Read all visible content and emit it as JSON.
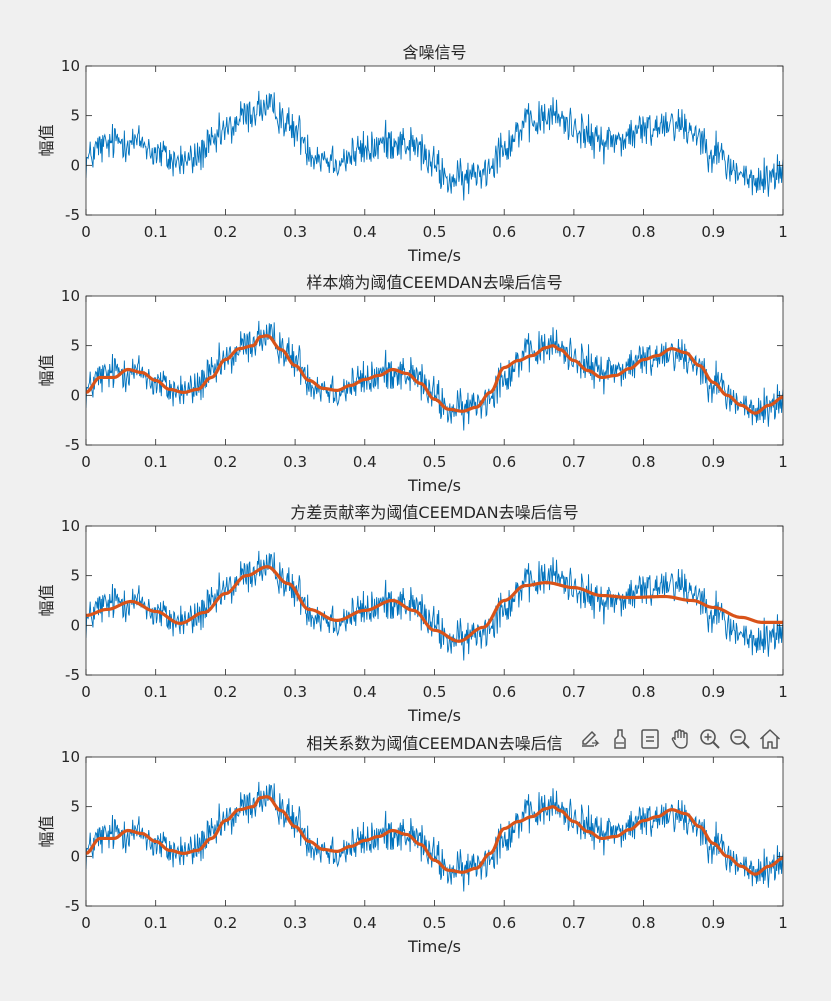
{
  "figure": {
    "background": "#f0f0f0",
    "axes_background": "#ffffff",
    "noisy_color": "#0072bd",
    "denoised_color": "#d95319"
  },
  "toolbar": {
    "icons": [
      "export-icon",
      "brush-icon",
      "data-tip-icon",
      "pan-hand-icon",
      "zoom-in-icon",
      "zoom-out-icon",
      "home-icon"
    ]
  },
  "chart_data": [
    {
      "type": "line",
      "title": "含噪信号",
      "xlabel": "Time/s",
      "ylabel": "幅值",
      "xlim": [
        0,
        1
      ],
      "ylim": [
        -5,
        10
      ],
      "xticks": [
        "0",
        "0.1",
        "0.2",
        "0.3",
        "0.4",
        "0.5",
        "0.6",
        "0.7",
        "0.8",
        "0.9",
        "1"
      ],
      "yticks": [
        "-5",
        "0",
        "5",
        "10"
      ],
      "grid": false,
      "series": [
        {
          "role": "noisy",
          "noise_amplitude": 1.0,
          "x": [
            0,
            0.02,
            0.05,
            0.08,
            0.1,
            0.13,
            0.15,
            0.18,
            0.2,
            0.23,
            0.25,
            0.27,
            0.3,
            0.33,
            0.36,
            0.4,
            0.44,
            0.47,
            0.5,
            0.52,
            0.54,
            0.57,
            0.6,
            0.63,
            0.67,
            0.7,
            0.73,
            0.76,
            0.8,
            0.84,
            0.87,
            0.9,
            0.93,
            0.96,
            0.98,
            1.0
          ],
          "y": [
            0.5,
            1.8,
            2.5,
            2.3,
            1.2,
            0.4,
            0.5,
            2.0,
            3.5,
            5.0,
            5.8,
            5.5,
            3.5,
            1.0,
            0.5,
            1.5,
            2.5,
            2.0,
            0,
            -1.5,
            -1.5,
            -0.5,
            2.0,
            4.0,
            5.0,
            4.0,
            2.5,
            2.5,
            3.5,
            4.5,
            3.5,
            1.5,
            -0.5,
            -1.8,
            -1.2,
            -0.5
          ]
        }
      ]
    },
    {
      "type": "line",
      "title": "样本熵为阈值CEEMDAN去噪后信号",
      "xlabel": "Time/s",
      "ylabel": "幅值",
      "xlim": [
        0,
        1
      ],
      "ylim": [
        -5,
        10
      ],
      "xticks": [
        "0",
        "0.1",
        "0.2",
        "0.3",
        "0.4",
        "0.5",
        "0.6",
        "0.7",
        "0.8",
        "0.9",
        "1"
      ],
      "yticks": [
        "-5",
        "0",
        "5",
        "10"
      ],
      "grid": false,
      "series": [
        {
          "role": "noisy",
          "noise_amplitude": 1.0,
          "x": [
            0,
            0.02,
            0.05,
            0.08,
            0.1,
            0.13,
            0.15,
            0.18,
            0.2,
            0.23,
            0.25,
            0.27,
            0.3,
            0.33,
            0.36,
            0.4,
            0.44,
            0.47,
            0.5,
            0.52,
            0.54,
            0.57,
            0.6,
            0.63,
            0.67,
            0.7,
            0.73,
            0.76,
            0.8,
            0.84,
            0.87,
            0.9,
            0.93,
            0.96,
            0.98,
            1.0
          ],
          "y": [
            0.5,
            1.8,
            2.5,
            2.3,
            1.2,
            0.4,
            0.5,
            2.0,
            3.5,
            5.0,
            5.8,
            5.5,
            3.5,
            1.0,
            0.5,
            1.5,
            2.5,
            2.0,
            0,
            -1.5,
            -1.5,
            -0.5,
            2.0,
            4.0,
            5.0,
            4.0,
            2.5,
            2.5,
            3.5,
            4.5,
            3.5,
            1.5,
            -0.5,
            -1.8,
            -1.2,
            -0.5
          ]
        },
        {
          "role": "denoised",
          "x": [
            0,
            0.02,
            0.04,
            0.06,
            0.08,
            0.1,
            0.12,
            0.14,
            0.16,
            0.18,
            0.2,
            0.22,
            0.24,
            0.25,
            0.26,
            0.28,
            0.3,
            0.32,
            0.34,
            0.36,
            0.38,
            0.4,
            0.42,
            0.44,
            0.46,
            0.48,
            0.5,
            0.52,
            0.54,
            0.56,
            0.58,
            0.6,
            0.62,
            0.64,
            0.66,
            0.67,
            0.68,
            0.7,
            0.72,
            0.74,
            0.76,
            0.78,
            0.8,
            0.82,
            0.84,
            0.86,
            0.88,
            0.9,
            0.92,
            0.94,
            0.96,
            0.98,
            1.0
          ],
          "y": [
            0.3,
            1.8,
            1.8,
            2.6,
            2.3,
            1.5,
            0.6,
            0.3,
            0.6,
            1.8,
            3.6,
            4.7,
            5.0,
            5.9,
            6.0,
            4.6,
            3.0,
            1.5,
            0.7,
            0.5,
            1.0,
            1.6,
            2.0,
            2.6,
            2.2,
            1.2,
            -0.4,
            -1.4,
            -1.6,
            -1.2,
            0.3,
            2.8,
            3.5,
            4.0,
            4.8,
            5.0,
            4.6,
            3.5,
            2.5,
            1.8,
            2.0,
            2.7,
            3.6,
            4.0,
            4.7,
            4.3,
            3.0,
            1.3,
            0,
            -1.0,
            -1.8,
            -1.0,
            -0.2
          ]
        }
      ]
    },
    {
      "type": "line",
      "title": "方差贡献率为阈值CEEMDAN去噪后信号",
      "xlabel": "Time/s",
      "ylabel": "幅值",
      "xlim": [
        0,
        1
      ],
      "ylim": [
        -5,
        10
      ],
      "xticks": [
        "0",
        "0.1",
        "0.2",
        "0.3",
        "0.4",
        "0.5",
        "0.6",
        "0.7",
        "0.8",
        "0.9",
        "1"
      ],
      "yticks": [
        "-5",
        "0",
        "5",
        "10"
      ],
      "grid": false,
      "series": [
        {
          "role": "noisy",
          "noise_amplitude": 1.0,
          "x": [
            0,
            0.02,
            0.05,
            0.08,
            0.1,
            0.13,
            0.15,
            0.18,
            0.2,
            0.23,
            0.25,
            0.27,
            0.3,
            0.33,
            0.36,
            0.4,
            0.44,
            0.47,
            0.5,
            0.52,
            0.54,
            0.57,
            0.6,
            0.63,
            0.67,
            0.7,
            0.73,
            0.76,
            0.8,
            0.84,
            0.87,
            0.9,
            0.93,
            0.96,
            0.98,
            1.0
          ],
          "y": [
            0.5,
            1.8,
            2.5,
            2.3,
            1.2,
            0.4,
            0.5,
            2.0,
            3.5,
            5.0,
            5.8,
            5.5,
            3.5,
            1.0,
            0.5,
            1.5,
            2.5,
            2.0,
            0,
            -1.5,
            -1.5,
            -0.5,
            2.0,
            4.0,
            5.0,
            4.0,
            2.5,
            2.5,
            3.5,
            4.5,
            3.5,
            1.5,
            -0.5,
            -1.8,
            -1.2,
            -0.5
          ]
        },
        {
          "role": "denoised",
          "x": [
            0,
            0.03,
            0.065,
            0.1,
            0.135,
            0.17,
            0.2,
            0.23,
            0.26,
            0.29,
            0.32,
            0.36,
            0.4,
            0.44,
            0.47,
            0.5,
            0.535,
            0.57,
            0.6,
            0.63,
            0.66,
            0.7,
            0.74,
            0.78,
            0.83,
            0.87,
            0.9,
            0.94,
            0.97,
            1.0
          ],
          "y": [
            1.0,
            1.6,
            2.4,
            1.4,
            0.2,
            1.3,
            3.2,
            5.0,
            5.9,
            4.2,
            1.6,
            0.5,
            1.5,
            2.5,
            1.5,
            -0.5,
            -1.6,
            -0.2,
            2.5,
            4.0,
            4.3,
            3.8,
            3.0,
            2.8,
            2.9,
            2.5,
            1.8,
            0.8,
            0.3,
            0.3
          ]
        }
      ]
    },
    {
      "type": "line",
      "title": "相关系数为阈值CEEMDAN去噪后信",
      "xlabel": "Time/s",
      "ylabel": "幅值",
      "xlim": [
        0,
        1
      ],
      "ylim": [
        -5,
        10
      ],
      "xticks": [
        "0",
        "0.1",
        "0.2",
        "0.3",
        "0.4",
        "0.5",
        "0.6",
        "0.7",
        "0.8",
        "0.9",
        "1"
      ],
      "yticks": [
        "-5",
        "0",
        "5",
        "10"
      ],
      "grid": false,
      "series": [
        {
          "role": "noisy",
          "noise_amplitude": 1.0,
          "x": [
            0,
            0.02,
            0.05,
            0.08,
            0.1,
            0.13,
            0.15,
            0.18,
            0.2,
            0.23,
            0.25,
            0.27,
            0.3,
            0.33,
            0.36,
            0.4,
            0.44,
            0.47,
            0.5,
            0.52,
            0.54,
            0.57,
            0.6,
            0.63,
            0.67,
            0.7,
            0.73,
            0.76,
            0.8,
            0.84,
            0.87,
            0.9,
            0.93,
            0.96,
            0.98,
            1.0
          ],
          "y": [
            0.5,
            1.8,
            2.5,
            2.3,
            1.2,
            0.4,
            0.5,
            2.0,
            3.5,
            5.0,
            5.8,
            5.5,
            3.5,
            1.0,
            0.5,
            1.5,
            2.5,
            2.0,
            0,
            -1.5,
            -1.5,
            -0.5,
            2.0,
            4.0,
            5.0,
            4.0,
            2.5,
            2.5,
            3.5,
            4.5,
            3.5,
            1.5,
            -0.5,
            -1.8,
            -1.2,
            -0.5
          ]
        },
        {
          "role": "denoised",
          "x": [
            0,
            0.02,
            0.04,
            0.06,
            0.08,
            0.1,
            0.12,
            0.14,
            0.16,
            0.18,
            0.2,
            0.22,
            0.24,
            0.25,
            0.26,
            0.28,
            0.3,
            0.32,
            0.34,
            0.36,
            0.38,
            0.4,
            0.42,
            0.44,
            0.46,
            0.48,
            0.5,
            0.52,
            0.54,
            0.56,
            0.58,
            0.6,
            0.62,
            0.64,
            0.66,
            0.67,
            0.68,
            0.7,
            0.72,
            0.74,
            0.76,
            0.78,
            0.8,
            0.82,
            0.84,
            0.86,
            0.88,
            0.9,
            0.92,
            0.94,
            0.96,
            0.98,
            1.0
          ],
          "y": [
            0.3,
            1.8,
            1.8,
            2.6,
            2.3,
            1.5,
            0.6,
            0.3,
            0.6,
            1.8,
            3.6,
            4.7,
            5.0,
            5.9,
            6.0,
            4.6,
            3.0,
            1.5,
            0.7,
            0.5,
            1.0,
            1.6,
            2.0,
            2.6,
            2.2,
            1.2,
            -0.4,
            -1.4,
            -1.6,
            -1.2,
            0.3,
            2.8,
            3.5,
            4.0,
            4.8,
            5.0,
            4.6,
            3.5,
            2.5,
            1.8,
            2.0,
            2.7,
            3.6,
            4.0,
            4.7,
            4.3,
            3.0,
            1.3,
            0,
            -1.0,
            -1.8,
            -1.0,
            -0.2
          ]
        }
      ]
    }
  ]
}
